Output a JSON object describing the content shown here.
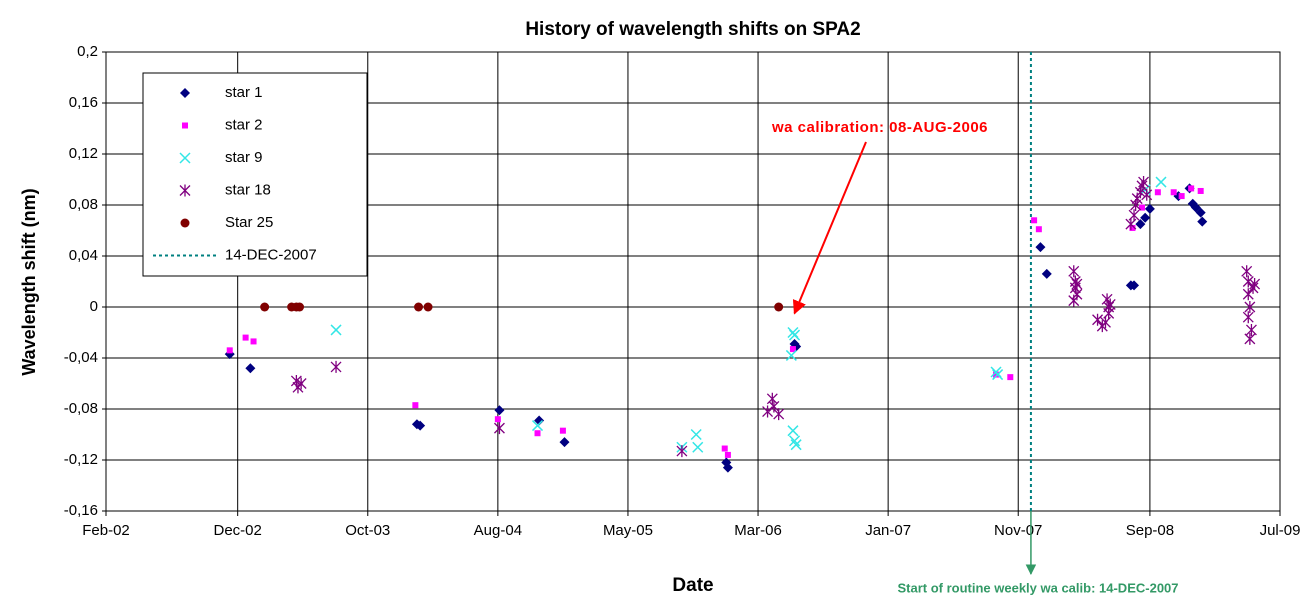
{
  "chart_data": {
    "type": "scatter",
    "title": "History of wavelength shifts on SPA2",
    "x_label": "Date",
    "y_label": "Wavelength shift (nm)",
    "xlim": [
      2002.12,
      2009.52
    ],
    "xticks": [
      {
        "value": 2002.12,
        "label": "Feb-02"
      },
      {
        "value": 2002.95,
        "label": "Dec-02"
      },
      {
        "value": 2003.77,
        "label": "Oct-03"
      },
      {
        "value": 2004.59,
        "label": "Aug-04"
      },
      {
        "value": 2005.41,
        "label": "May-05"
      },
      {
        "value": 2006.23,
        "label": "Mar-06"
      },
      {
        "value": 2007.05,
        "label": "Jan-07"
      },
      {
        "value": 2007.87,
        "label": "Nov-07"
      },
      {
        "value": 2008.7,
        "label": "Sep-08"
      },
      {
        "value": 2009.52,
        "label": "Jul-09"
      }
    ],
    "ylim": [
      -0.16,
      0.2
    ],
    "yticks": [
      {
        "value": -0.16,
        "label": "-0,16"
      },
      {
        "value": -0.12,
        "label": "-0,12"
      },
      {
        "value": -0.08,
        "label": "-0,08"
      },
      {
        "value": -0.04,
        "label": "-0,04"
      },
      0,
      {
        "value": 0.04,
        "label": "0,04"
      },
      {
        "value": 0.08,
        "label": "0,08"
      },
      {
        "value": 0.12,
        "label": "0,12"
      },
      {
        "value": 0.16,
        "label": "0,16"
      },
      {
        "value": 0.2,
        "label": "0,2"
      }
    ],
    "grid": true,
    "legend": "upper left",
    "series": [
      {
        "name": "star 1",
        "color": "#000080",
        "marker": "diamond",
        "x": [
          2002.9,
          2003.03,
          2004.08,
          2004.1,
          2004.6,
          2004.85,
          2005.01,
          2006.03,
          2006.04,
          2006.46,
          2006.47,
          2008.01,
          2008.05,
          2008.58,
          2008.6,
          2008.64,
          2008.67,
          2008.7,
          2008.88,
          2008.95,
          2008.97,
          2008.99,
          2009.02,
          2009.03
        ],
        "values": [
          -0.037,
          -0.048,
          -0.092,
          -0.093,
          -0.081,
          -0.089,
          -0.106,
          -0.122,
          -0.126,
          -0.029,
          -0.031,
          0.047,
          0.026,
          0.017,
          0.017,
          0.065,
          0.07,
          0.077,
          0.087,
          0.093,
          0.081,
          0.078,
          0.074,
          0.067
        ]
      },
      {
        "name": "star 2",
        "color": "#ff00ff",
        "marker": "square",
        "x": [
          2002.9,
          2003.0,
          2003.05,
          2004.07,
          2004.59,
          2004.84,
          2005.0,
          2006.02,
          2006.04,
          2006.45,
          2007.73,
          2007.82,
          2007.97,
          2008.0,
          2008.59,
          2008.65,
          2008.75,
          2008.85,
          2008.9,
          2008.96,
          2009.02
        ],
        "values": [
          -0.034,
          -0.024,
          -0.027,
          -0.077,
          -0.088,
          -0.099,
          -0.097,
          -0.111,
          -0.116,
          -0.033,
          -0.053,
          -0.055,
          0.068,
          0.061,
          0.062,
          0.078,
          0.09,
          0.09,
          0.087,
          0.093,
          0.091
        ]
      },
      {
        "name": "star 9",
        "color": "#33e6e6",
        "marker": "x",
        "x": [
          2003.57,
          2004.84,
          2005.75,
          2005.84,
          2005.85,
          2006.45,
          2006.46,
          2006.47,
          2006.45,
          2006.46,
          2006.44,
          2007.73,
          2007.74,
          2008.67,
          2008.77
        ],
        "values": [
          -0.018,
          -0.093,
          -0.11,
          -0.1,
          -0.11,
          -0.097,
          -0.105,
          -0.108,
          -0.02,
          -0.022,
          -0.038,
          -0.051,
          -0.053,
          0.092,
          0.098
        ]
      },
      {
        "name": "star 18",
        "color": "#800080",
        "marker": "asterisk",
        "x": [
          2003.32,
          2003.33,
          2003.35,
          2003.57,
          2004.6,
          2005.75,
          2006.29,
          2006.32,
          2006.33,
          2006.36,
          2008.22,
          2008.23,
          2008.23,
          2008.24,
          2008.22,
          2008.24,
          2008.37,
          2008.4,
          2008.42,
          2008.43,
          2008.44,
          2008.44,
          2008.45,
          2008.58,
          2008.6,
          2008.61,
          2008.62,
          2008.64,
          2008.66,
          2008.65,
          2008.68,
          2009.31,
          2009.32,
          2009.32,
          2009.33,
          2009.32,
          2009.33,
          2009.34,
          2009.35,
          2009.36
        ],
        "values": [
          -0.058,
          -0.063,
          -0.06,
          -0.047,
          -0.095,
          -0.113,
          -0.082,
          -0.072,
          -0.078,
          -0.084,
          0.028,
          0.02,
          0.015,
          0.01,
          0.005,
          0.018,
          -0.01,
          -0.015,
          -0.012,
          0.006,
          0,
          -0.005,
          0.002,
          0.065,
          0.072,
          0.08,
          0.085,
          0.09,
          0.098,
          0.095,
          0.088,
          0.028,
          0.02,
          0.01,
          0,
          -0.008,
          -0.025,
          -0.018,
          0.015,
          0.018
        ]
      },
      {
        "name": "Star 25",
        "color": "#800000",
        "marker": "circle",
        "x": [
          2003.12,
          2003.29,
          2003.32,
          2003.34,
          2004.09,
          2004.15,
          2006.36
        ],
        "values": [
          0,
          0,
          0,
          0,
          0,
          0,
          0
        ]
      }
    ],
    "vline": {
      "name": "14-DEC-2007",
      "x": 2007.95,
      "color": "#008080"
    },
    "annotations": [
      {
        "text": "wa calibration: 08-AUG-2006",
        "color": "#ff0000",
        "x": 2006.46,
        "y": -0.005
      },
      {
        "text": "Start of routine weekly wa calib: 14-DEC-2007",
        "color": "#339966"
      }
    ]
  }
}
